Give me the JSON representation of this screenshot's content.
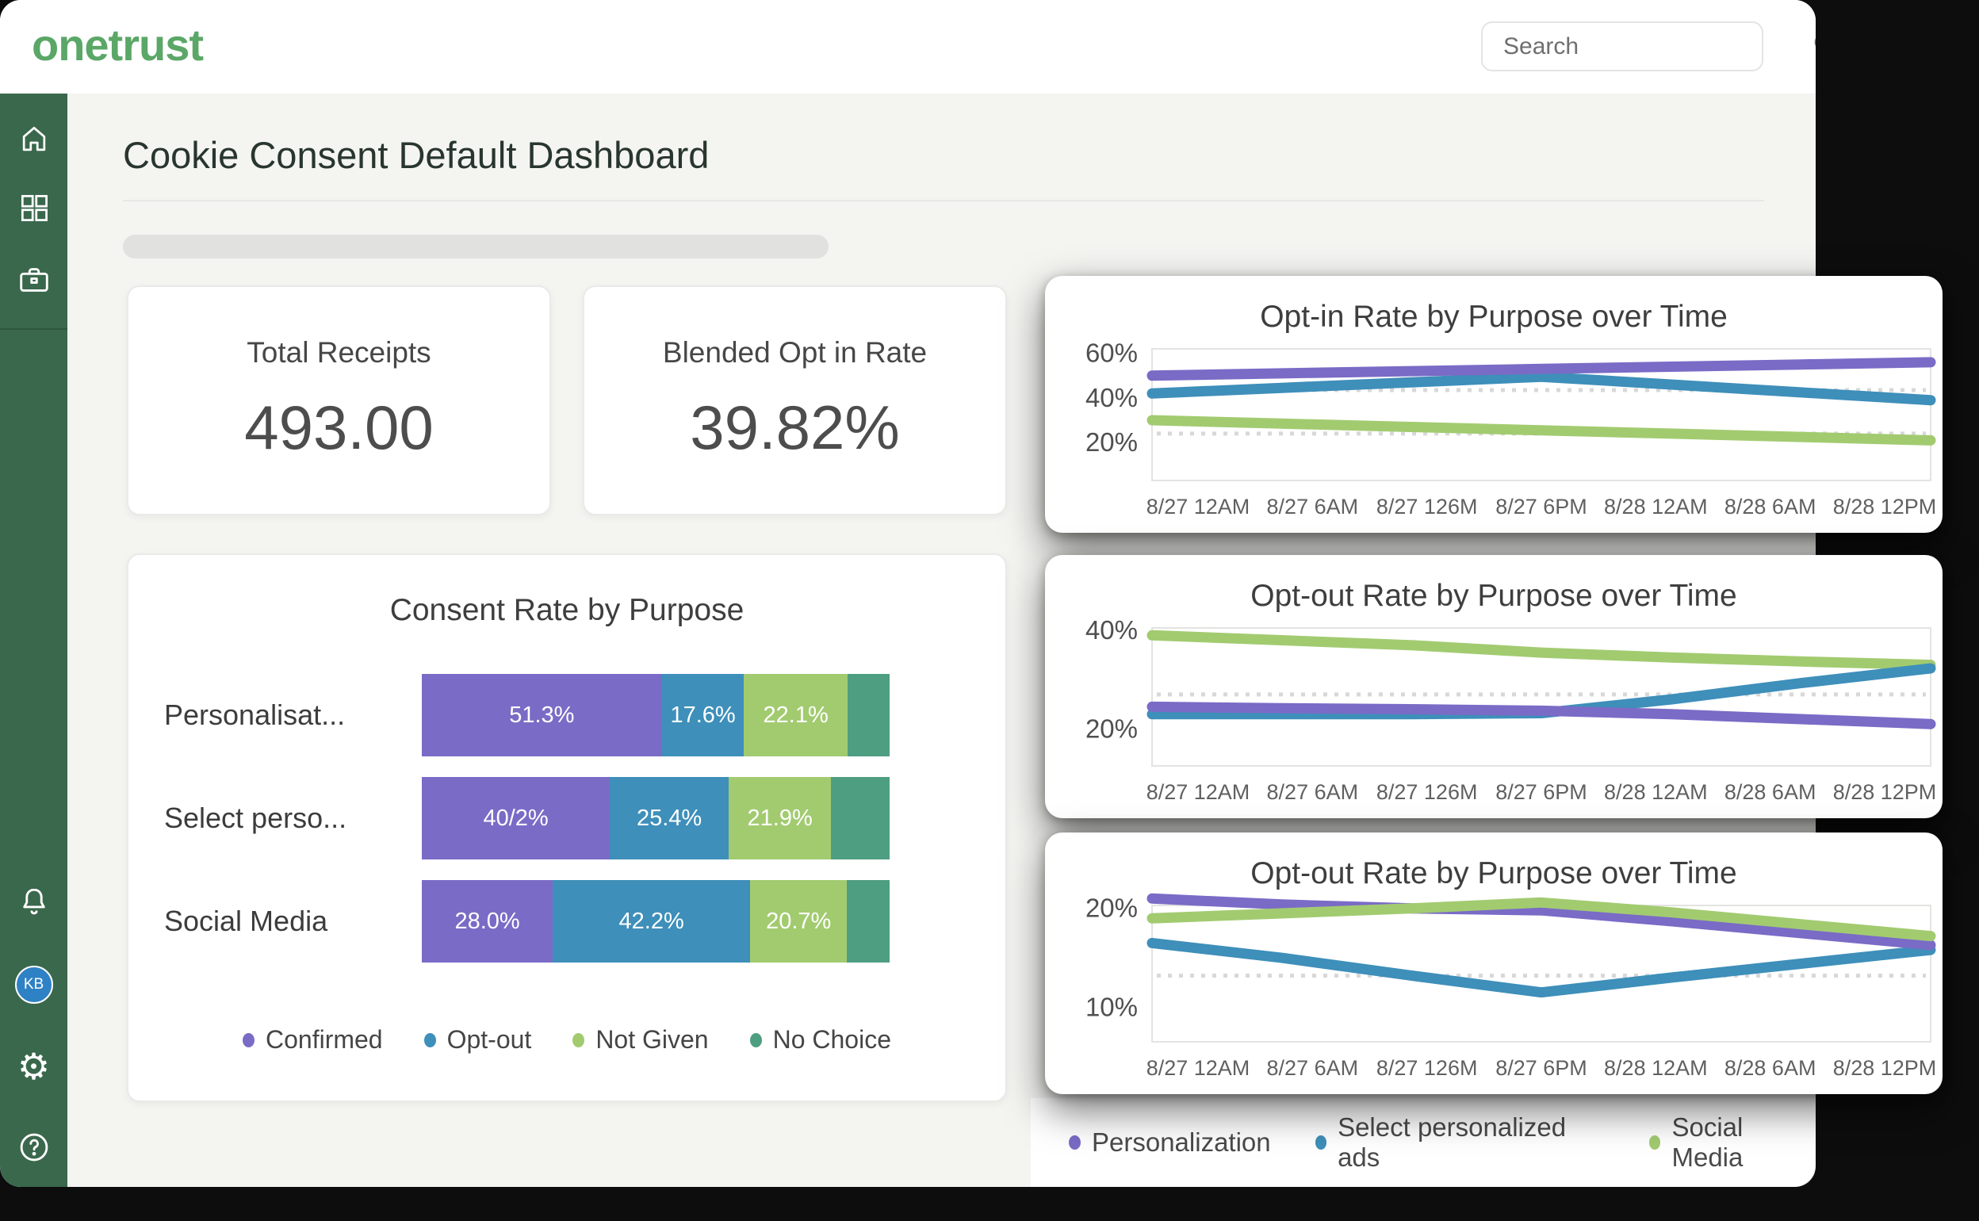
{
  "brand": {
    "logo_text": "onetrust"
  },
  "topbar": {
    "search_placeholder": "Search"
  },
  "sidebar": {
    "items": [
      {
        "name": "home"
      },
      {
        "name": "apps"
      },
      {
        "name": "workspace"
      },
      {
        "name": "notifications"
      },
      {
        "name": "user-avatar",
        "initials": "KB"
      },
      {
        "name": "settings"
      },
      {
        "name": "help"
      }
    ]
  },
  "page": {
    "title": "Cookie Consent Default Dashboard"
  },
  "stats": [
    {
      "label": "Total Receipts",
      "value": "493.00"
    },
    {
      "label": "Blended Opt in Rate",
      "value": "39.82%"
    }
  ],
  "colors": {
    "purple": "#7A6BC6",
    "blue": "#3E8FBA",
    "green": "#A2CB70",
    "teal": "#4E9E81",
    "sidebar_green": "#3A684C",
    "logo_green": "#5BA767",
    "avatar_blue": "#2E81C4"
  },
  "time_legend": [
    {
      "label": "Personalization",
      "color": "#7A6BC6"
    },
    {
      "label": "Select personalized ads",
      "color": "#3E8FBA"
    },
    {
      "label": "Social Media",
      "color": "#A2CB70"
    }
  ],
  "chart_data": [
    {
      "type": "bar",
      "orientation": "horizontal-stacked",
      "title": "Consent Rate by Purpose",
      "categories": [
        "Personalisat...",
        "Select perso...",
        "Social Media"
      ],
      "xlim": [
        0,
        100
      ],
      "legend_position": "bottom",
      "series": [
        {
          "name": "Confirmed",
          "color": "#7A6BC6",
          "values": [
            51.3,
            40.2,
            28.0
          ],
          "segment_labels": [
            "51.3%",
            "40/2%",
            "28.0%"
          ]
        },
        {
          "name": "Opt-out",
          "color": "#3E8FBA",
          "values": [
            17.6,
            25.4,
            42.2
          ],
          "segment_labels": [
            "17.6%",
            "25.4%",
            "42.2%"
          ]
        },
        {
          "name": "Not Given",
          "color": "#A2CB70",
          "values": [
            22.1,
            21.9,
            20.7
          ],
          "segment_labels": [
            "22.1%",
            "21.9%",
            "20.7%"
          ]
        },
        {
          "name": "No Choice",
          "color": "#4E9E81",
          "values": [
            9.0,
            12.5,
            9.1
          ],
          "segment_labels": [
            "",
            "",
            ""
          ]
        }
      ]
    },
    {
      "type": "line",
      "title": "Opt-in Rate by Purpose over Time",
      "x": [
        "8/27 12AM",
        "8/27 6AM",
        "8/27 126M",
        "8/27 6PM",
        "8/28 12AM",
        "8/28 6AM",
        "8/28 12PM"
      ],
      "y_ticks": [
        {
          "label": "60%",
          "value": 60
        },
        {
          "label": "40%",
          "value": 40
        },
        {
          "label": "20%",
          "value": 20
        }
      ],
      "ylim": [
        3,
        62
      ],
      "avg_dotted_lines": [
        43.5,
        24
      ],
      "grid": false,
      "series": [
        {
          "name": "Personalization",
          "color": "#7A6BC6",
          "values": [
            50,
            51,
            52,
            53,
            54,
            55,
            56
          ]
        },
        {
          "name": "Select personalized ads",
          "color": "#3E8FBA",
          "values": [
            42,
            44.5,
            47,
            49.5,
            46,
            42.5,
            39
          ]
        },
        {
          "name": "Social Media",
          "color": "#A2CB70",
          "values": [
            30,
            28.5,
            27,
            25.5,
            24,
            22.5,
            21
          ]
        }
      ],
      "draw_order": [
        2,
        1,
        0
      ]
    },
    {
      "type": "line",
      "title": "Opt-out Rate by Purpose over Time",
      "x": [
        "8/27 12AM",
        "8/27 6AM",
        "8/27 126M",
        "8/27 6PM",
        "8/28 12AM",
        "8/28 6AM",
        "8/28 12PM"
      ],
      "y_ticks": [
        {
          "label": "40%",
          "value": 40
        },
        {
          "label": "20%",
          "value": 20
        }
      ],
      "ylim": [
        12.5,
        40.5
      ],
      "avg_dotted_lines": [
        27
      ],
      "grid": false,
      "series": [
        {
          "name": "Personalization",
          "color": "#7A6BC6",
          "values": [
            24.5,
            24.2,
            24,
            23.7,
            23,
            22,
            21
          ]
        },
        {
          "name": "Select personalized ads",
          "color": "#3E8FBA",
          "values": [
            23,
            23,
            23,
            23.2,
            26,
            29.3,
            32.3
          ]
        },
        {
          "name": "Social Media",
          "color": "#A2CB70",
          "values": [
            39,
            38,
            37,
            35.5,
            34.5,
            33.7,
            33
          ]
        }
      ],
      "draw_order": [
        2,
        1,
        0
      ]
    },
    {
      "type": "line",
      "title": "Opt-out Rate by Purpose over Time",
      "x": [
        "8/27 12AM",
        "8/27 6AM",
        "8/27 126M",
        "8/27 6PM",
        "8/28 12AM",
        "8/28 6AM",
        "8/28 12PM"
      ],
      "y_ticks": [
        {
          "label": "20%",
          "value": 20
        },
        {
          "label": "10%",
          "value": 10
        }
      ],
      "ylim": [
        6.5,
        20.3
      ],
      "avg_dotted_lines": [
        13.2
      ],
      "grid": false,
      "series": [
        {
          "name": "Personalization",
          "color": "#7A6BC6",
          "values": [
            21,
            20.4,
            20,
            19.8,
            18.7,
            17.5,
            16.3
          ]
        },
        {
          "name": "Select personalized ads",
          "color": "#3E8FBA",
          "values": [
            16.5,
            15,
            13.2,
            11.5,
            13,
            14.4,
            15.8
          ]
        },
        {
          "name": "Social Media",
          "color": "#A2CB70",
          "values": [
            19,
            19.5,
            20,
            20.6,
            19.6,
            18.4,
            17.2
          ]
        }
      ],
      "draw_order": [
        1,
        0,
        2
      ]
    }
  ]
}
